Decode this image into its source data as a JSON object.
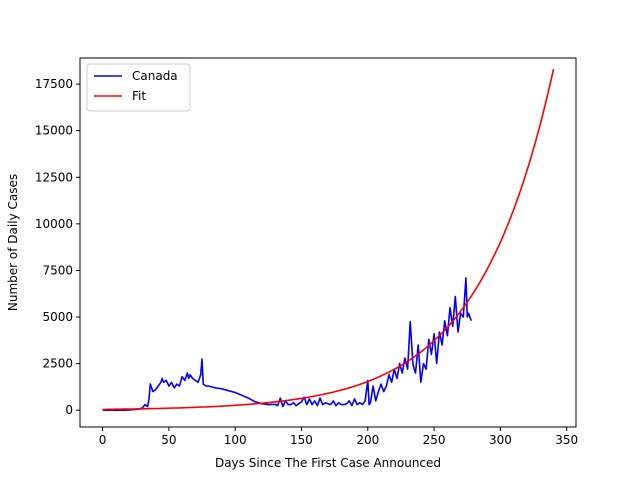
{
  "chart_data": {
    "type": "line",
    "title": "",
    "xlabel": "Days Since The First Case Announced",
    "ylabel": "Number of Daily Cases",
    "xlim": [
      -17,
      357
    ],
    "ylim": [
      -900,
      18900
    ],
    "xticks": [
      0,
      50,
      100,
      150,
      200,
      250,
      300,
      350
    ],
    "yticks": [
      0,
      2500,
      5000,
      7500,
      10000,
      12500,
      15000,
      17500
    ],
    "grid": false,
    "legend_position": "top-left",
    "series": [
      {
        "name": "Canada",
        "color": "#0000ff",
        "x": [
          0,
          5,
          10,
          15,
          20,
          25,
          28,
          30,
          32,
          34,
          35,
          36,
          38,
          40,
          42,
          44,
          45,
          46,
          48,
          50,
          52,
          54,
          56,
          58,
          60,
          62,
          64,
          65,
          66,
          68,
          70,
          72,
          74,
          75,
          76,
          78,
          80,
          85,
          90,
          95,
          100,
          105,
          110,
          115,
          120,
          125,
          130,
          132,
          134,
          136,
          138,
          140,
          142,
          144,
          146,
          148,
          150,
          152,
          154,
          156,
          158,
          160,
          162,
          164,
          166,
          168,
          170,
          172,
          174,
          176,
          178,
          180,
          182,
          184,
          186,
          188,
          190,
          192,
          194,
          196,
          198,
          200,
          201,
          202,
          204,
          206,
          208,
          210,
          212,
          214,
          216,
          218,
          220,
          222,
          224,
          226,
          228,
          230,
          232,
          234,
          235,
          236,
          238,
          240,
          242,
          244,
          246,
          248,
          250,
          252,
          254,
          256,
          258,
          260,
          262,
          264,
          266,
          268,
          270,
          272,
          274,
          275,
          276,
          278
        ],
        "y": [
          0,
          0,
          0,
          0,
          10,
          40,
          80,
          120,
          300,
          200,
          600,
          1400,
          1000,
          1100,
          1300,
          1500,
          1700,
          1500,
          1600,
          1300,
          1500,
          1200,
          1400,
          1300,
          1800,
          1600,
          2000,
          1700,
          1900,
          1700,
          1600,
          1500,
          1900,
          2750,
          1400,
          1300,
          1300,
          1200,
          1150,
          1050,
          950,
          800,
          650,
          450,
          350,
          300,
          320,
          250,
          650,
          200,
          500,
          300,
          300,
          400,
          250,
          350,
          450,
          700,
          300,
          600,
          300,
          500,
          250,
          650,
          300,
          400,
          350,
          300,
          500,
          250,
          400,
          300,
          300,
          350,
          500,
          250,
          600,
          300,
          400,
          300,
          500,
          1600,
          300,
          400,
          1300,
          500,
          1000,
          1400,
          1000,
          1300,
          1900,
          1500,
          2200,
          1700,
          2500,
          2000,
          2800,
          2200,
          4750,
          2500,
          2200,
          2000,
          3500,
          1500,
          2500,
          2200,
          3800,
          3000,
          4100,
          2500,
          4200,
          3500,
          4800,
          4000,
          5500,
          4500,
          6100,
          4200,
          5200,
          5000,
          7100,
          5000,
          5200,
          4800
        ]
      },
      {
        "name": "Fit",
        "color": "#ff0000",
        "model": "exponential",
        "a": 45,
        "b": 0.01767,
        "x_start": 0,
        "x_end": 340,
        "step": 2
      }
    ]
  }
}
